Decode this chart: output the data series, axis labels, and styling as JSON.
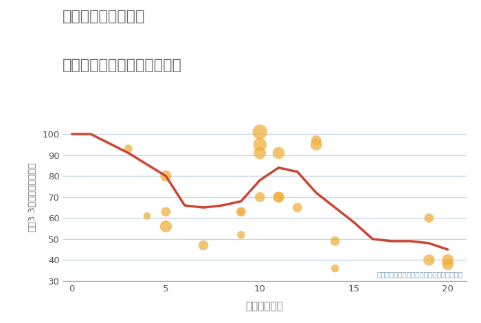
{
  "title_line1": "千葉県市原市馬立の",
  "title_line2": "駅距離別中古マンション価格",
  "xlabel": "駅距離（分）",
  "ylabel": "坪（3.3㎡）単価（万円）",
  "annotation": "円の大きさは、取引のあった物件面積を示す",
  "background_color": "#ffffff",
  "grid_color": "#c8d8e8",
  "title_color": "#666666",
  "axis_label_color": "#777777",
  "annotation_color": "#7799bb",
  "line_color": "#cc4433",
  "scatter_color": "#f0b040",
  "scatter_alpha": 0.75,
  "ylim": [
    30,
    110
  ],
  "xlim": [
    -0.5,
    21
  ],
  "line_points_x": [
    0,
    1,
    3,
    5,
    6,
    7,
    8,
    9,
    10,
    11,
    12,
    13,
    14,
    15,
    16,
    17,
    18,
    19,
    20
  ],
  "line_points_y": [
    100,
    100,
    91,
    80,
    66,
    65,
    66,
    68,
    78,
    84,
    82,
    72,
    65,
    58,
    50,
    49,
    49,
    48,
    45
  ],
  "scatter_x": [
    3,
    4,
    5,
    5,
    5,
    7,
    9,
    9,
    9,
    10,
    10,
    10,
    10,
    11,
    11,
    11,
    12,
    13,
    13,
    14,
    14,
    19,
    19,
    20,
    20
  ],
  "scatter_y": [
    93,
    61,
    80,
    63,
    56,
    47,
    52,
    63,
    63,
    70,
    101,
    95,
    91,
    91,
    70,
    70,
    65,
    95,
    97,
    49,
    36,
    40,
    60,
    40,
    38
  ],
  "scatter_size": [
    80,
    60,
    140,
    100,
    160,
    110,
    70,
    100,
    70,
    110,
    240,
    200,
    170,
    160,
    130,
    130,
    100,
    150,
    110,
    100,
    70,
    140,
    100,
    150,
    150
  ],
  "xticks": [
    0,
    5,
    10,
    15,
    20
  ],
  "yticks": [
    30,
    40,
    50,
    60,
    70,
    80,
    90,
    100
  ]
}
